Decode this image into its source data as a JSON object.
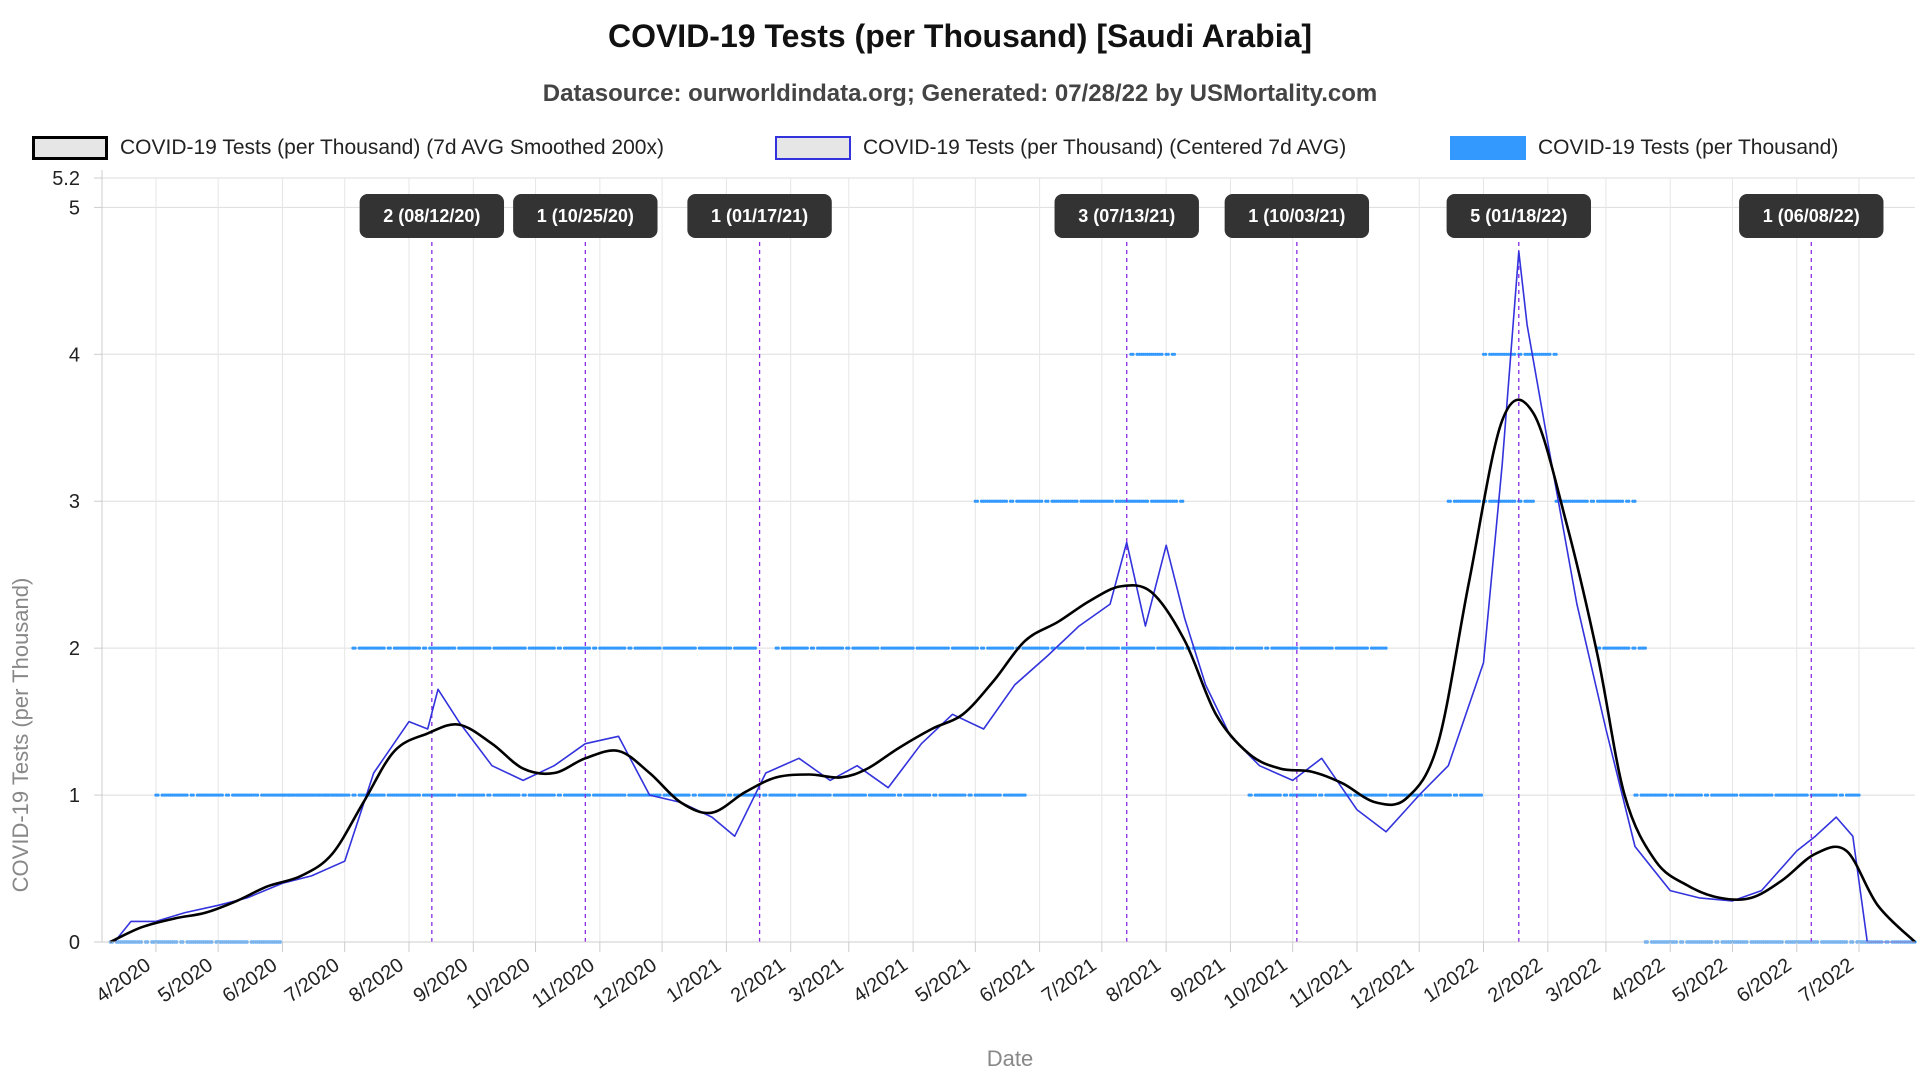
{
  "chart_data": {
    "type": "line",
    "title": "COVID-19 Tests (per Thousand) [Saudi Arabia]",
    "subtitle": "Datasource: ourworldindata.org; Generated: 07/28/22 by USMortality.com",
    "xlabel": "Date",
    "ylabel": "COVID-19 Tests (per Thousand)",
    "ylim": [
      0,
      5.2
    ],
    "yticks": [
      "0",
      "1",
      "2",
      "3",
      "4",
      "5",
      "5.2"
    ],
    "xlim": [
      "2020-03-06",
      "2022-07-28"
    ],
    "xticks": [
      "4/2020",
      "5/2020",
      "6/2020",
      "7/2020",
      "8/2020",
      "9/2020",
      "10/2020",
      "11/2020",
      "12/2020",
      "1/2021",
      "2/2021",
      "3/2021",
      "4/2021",
      "5/2021",
      "6/2021",
      "7/2021",
      "8/2021",
      "9/2021",
      "10/2021",
      "11/2021",
      "12/2021",
      "1/2022",
      "2/2022",
      "3/2022",
      "4/2022",
      "5/2022",
      "6/2022",
      "7/2022"
    ],
    "grid": true,
    "legend_position": "top",
    "series": [
      {
        "name": "COVID-19 Tests (per Thousand) (7d AVG Smoothed 200x)",
        "color": "#000000",
        "style": "line",
        "x": [
          "2020-03-10",
          "2020-03-25",
          "2020-04-10",
          "2020-04-25",
          "2020-05-10",
          "2020-05-25",
          "2020-06-10",
          "2020-06-25",
          "2020-07-10",
          "2020-07-25",
          "2020-08-10",
          "2020-08-25",
          "2020-09-10",
          "2020-09-25",
          "2020-10-10",
          "2020-10-25",
          "2020-11-10",
          "2020-11-25",
          "2020-12-10",
          "2020-12-25",
          "2021-01-10",
          "2021-01-25",
          "2021-02-10",
          "2021-02-25",
          "2021-03-10",
          "2021-03-25",
          "2021-04-10",
          "2021-04-25",
          "2021-05-10",
          "2021-05-25",
          "2021-06-10",
          "2021-06-25",
          "2021-07-10",
          "2021-07-25",
          "2021-08-10",
          "2021-08-25",
          "2021-09-10",
          "2021-09-25",
          "2021-10-10",
          "2021-10-25",
          "2021-11-10",
          "2021-11-25",
          "2021-12-10",
          "2021-12-25",
          "2022-01-10",
          "2022-01-25",
          "2022-02-10",
          "2022-02-25",
          "2022-03-10",
          "2022-03-25",
          "2022-04-10",
          "2022-04-25",
          "2022-05-10",
          "2022-05-25",
          "2022-06-10",
          "2022-06-25",
          "2022-07-10",
          "2022-07-28"
        ],
        "y": [
          0.0,
          0.1,
          0.16,
          0.2,
          0.28,
          0.38,
          0.45,
          0.6,
          0.95,
          1.3,
          1.42,
          1.48,
          1.35,
          1.18,
          1.15,
          1.25,
          1.3,
          1.15,
          0.95,
          0.88,
          1.02,
          1.12,
          1.14,
          1.12,
          1.18,
          1.32,
          1.45,
          1.55,
          1.78,
          2.05,
          2.18,
          2.32,
          2.42,
          2.38,
          2.05,
          1.55,
          1.28,
          1.18,
          1.16,
          1.08,
          0.95,
          0.98,
          1.35,
          2.45,
          3.55,
          3.6,
          2.85,
          1.95,
          1.0,
          0.55,
          0.38,
          0.3,
          0.3,
          0.42,
          0.6,
          0.62,
          0.25,
          0.0
        ]
      },
      {
        "name": "COVID-19 Tests (per Thousand) (Centered 7d AVG)",
        "color": "#3333dd",
        "style": "line",
        "x": [
          "2020-03-12",
          "2020-03-20",
          "2020-04-01",
          "2020-04-15",
          "2020-05-01",
          "2020-05-15",
          "2020-06-01",
          "2020-06-15",
          "2020-07-01",
          "2020-07-15",
          "2020-08-01",
          "2020-08-10",
          "2020-08-15",
          "2020-08-25",
          "2020-09-10",
          "2020-09-25",
          "2020-10-10",
          "2020-10-25",
          "2020-11-10",
          "2020-11-25",
          "2020-12-10",
          "2020-12-25",
          "2021-01-05",
          "2021-01-20",
          "2021-02-05",
          "2021-02-20",
          "2021-03-05",
          "2021-03-20",
          "2021-04-05",
          "2021-04-20",
          "2021-05-05",
          "2021-05-20",
          "2021-06-05",
          "2021-06-20",
          "2021-07-05",
          "2021-07-13",
          "2021-07-22",
          "2021-08-01",
          "2021-08-10",
          "2021-08-20",
          "2021-09-01",
          "2021-09-15",
          "2021-10-01",
          "2021-10-15",
          "2021-11-01",
          "2021-11-15",
          "2021-12-01",
          "2021-12-15",
          "2022-01-01",
          "2022-01-10",
          "2022-01-18",
          "2022-01-22",
          "2022-02-01",
          "2022-02-15",
          "2022-03-01",
          "2022-03-15",
          "2022-04-01",
          "2022-04-15",
          "2022-05-01",
          "2022-05-15",
          "2022-06-01",
          "2022-06-10",
          "2022-06-20",
          "2022-06-28",
          "2022-07-05",
          "2022-07-28"
        ],
        "y": [
          0.0,
          0.14,
          0.14,
          0.2,
          0.25,
          0.3,
          0.4,
          0.45,
          0.55,
          1.15,
          1.5,
          1.45,
          1.72,
          1.5,
          1.2,
          1.1,
          1.2,
          1.35,
          1.4,
          1.0,
          0.95,
          0.85,
          0.72,
          1.15,
          1.25,
          1.1,
          1.2,
          1.05,
          1.35,
          1.55,
          1.45,
          1.75,
          1.95,
          2.15,
          2.3,
          2.72,
          2.15,
          2.7,
          2.2,
          1.75,
          1.4,
          1.2,
          1.1,
          1.25,
          0.9,
          0.75,
          1.0,
          1.2,
          1.9,
          3.25,
          4.7,
          4.2,
          3.4,
          2.3,
          1.45,
          0.65,
          0.35,
          0.3,
          0.28,
          0.35,
          0.62,
          0.72,
          0.85,
          0.72,
          0.0,
          0.0
        ]
      },
      {
        "name": "COVID-19 Tests (per Thousand)",
        "color": "#3399ff",
        "style": "points",
        "segments": [
          {
            "start": "2020-03-10",
            "end": "2020-05-31",
            "y": 0
          },
          {
            "start": "2020-04-01",
            "end": "2020-06-30",
            "y": 1
          },
          {
            "start": "2020-06-01",
            "end": "2021-05-25",
            "y": 1
          },
          {
            "start": "2020-07-05",
            "end": "2021-01-15",
            "y": 2
          },
          {
            "start": "2021-01-25",
            "end": "2021-08-31",
            "y": 2
          },
          {
            "start": "2021-05-01",
            "end": "2021-08-10",
            "y": 3
          },
          {
            "start": "2021-09-10",
            "end": "2021-12-31",
            "y": 1
          },
          {
            "start": "2021-08-15",
            "end": "2021-11-15",
            "y": 2
          },
          {
            "start": "2021-12-15",
            "end": "2022-01-25",
            "y": 3
          },
          {
            "start": "2022-01-01",
            "end": "2022-02-05",
            "y": 4
          },
          {
            "start": "2022-02-05",
            "end": "2022-03-15",
            "y": 3
          },
          {
            "start": "2022-02-25",
            "end": "2022-03-20",
            "y": 2
          },
          {
            "start": "2022-03-15",
            "end": "2022-07-01",
            "y": 1
          },
          {
            "start": "2022-03-20",
            "end": "2022-07-28",
            "y": 0
          },
          {
            "start": "2021-07-15",
            "end": "2021-08-05",
            "y": 4
          }
        ]
      }
    ],
    "annotations": [
      {
        "date": "2020-08-12",
        "label": "2 (08/12/20)"
      },
      {
        "date": "2020-10-25",
        "label": "1 (10/25/20)"
      },
      {
        "date": "2021-01-17",
        "label": "1 (01/17/21)"
      },
      {
        "date": "2021-07-13",
        "label": "3 (07/13/21)"
      },
      {
        "date": "2021-10-03",
        "label": "1 (10/03/21)"
      },
      {
        "date": "2022-01-18",
        "label": "5 (01/18/22)"
      },
      {
        "date": "2022-06-08",
        "label": "1 (06/08/22)"
      }
    ]
  }
}
